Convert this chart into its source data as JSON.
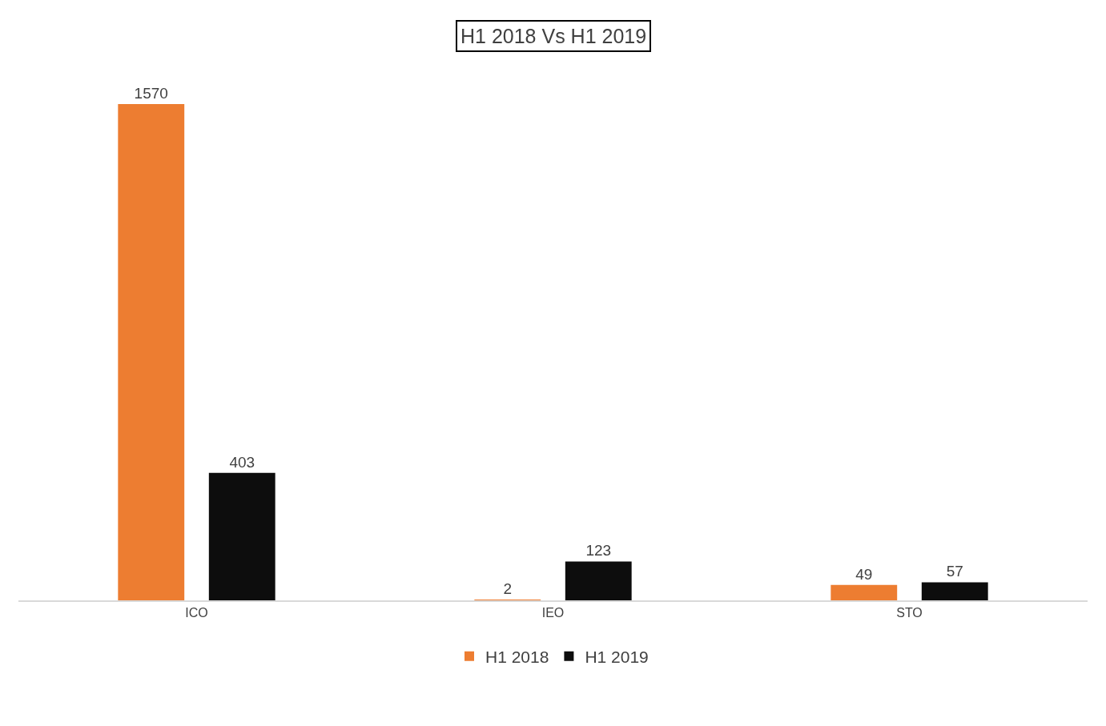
{
  "chart_data": {
    "type": "bar",
    "title": "H1 2018 Vs H1 2019",
    "categories": [
      "ICO",
      "IEO",
      "STO"
    ],
    "series": [
      {
        "name": "H1 2018",
        "color": "#ed7d31",
        "values": [
          1570,
          2,
          49
        ]
      },
      {
        "name": "H1 2019",
        "color": "#0d0d0d",
        "values": [
          403,
          123,
          57
        ]
      }
    ],
    "data_labels": true,
    "legend": "bottom",
    "grid": false
  }
}
